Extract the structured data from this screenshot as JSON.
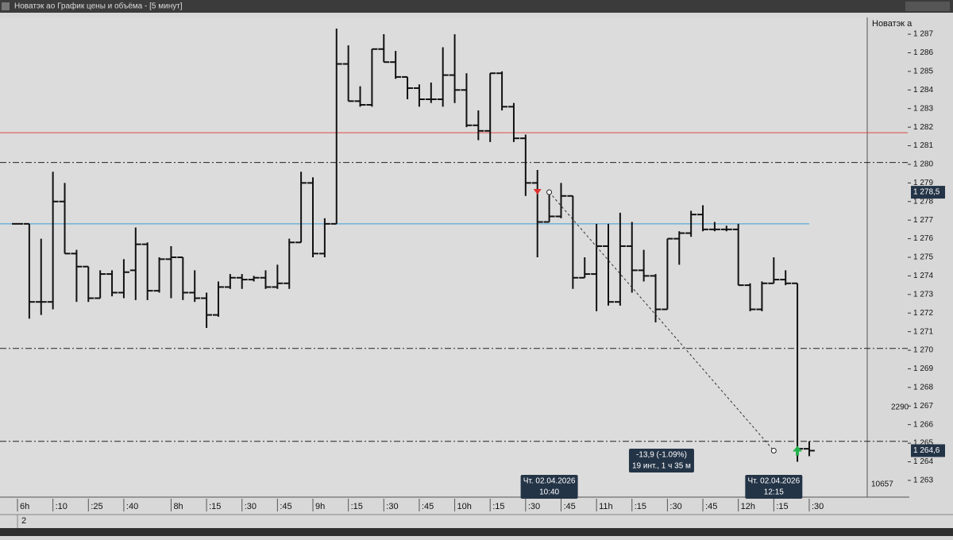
{
  "window_title": "Новатэк ао График цены и объёма - [5 минут]",
  "chart_data": {
    "type": "ohlc",
    "axis_title": "Новатэк а",
    "color": "#111111",
    "categories": [
      "6h",
      null,
      null,
      ":10",
      null,
      null,
      ":25",
      null,
      null,
      ":40",
      null,
      null,
      null,
      "8h",
      null,
      null,
      ":15",
      null,
      null,
      ":30",
      null,
      null,
      ":45",
      null,
      null,
      "9h",
      null,
      null,
      ":15",
      null,
      null,
      ":30",
      null,
      null,
      ":45",
      null,
      null,
      "10h",
      null,
      null,
      ":15",
      null,
      null,
      ":30",
      null,
      null,
      ":45",
      null,
      null,
      "11h",
      null,
      null,
      ":15",
      null,
      null,
      ":30",
      null,
      null,
      ":45",
      null,
      null,
      "12h",
      null,
      null,
      ":15",
      null,
      null,
      ":30"
    ],
    "open": [
      1276.8,
      1276.8,
      1272.6,
      1272.6,
      1278.0,
      1275.2,
      1274.5,
      1272.8,
      1274.1,
      1273.1,
      1274.3,
      1275.7,
      1273.2,
      1274.9,
      1275.0,
      1273.1,
      1272.8,
      1271.9,
      1273.4,
      1273.9,
      1273.8,
      1273.9,
      1273.4,
      1273.6,
      1275.8,
      1279.0,
      1275.2,
      1276.8,
      1285.4,
      1283.4,
      1283.2,
      1286.2,
      1285.5,
      1284.7,
      1284.1,
      1283.5,
      1283.5,
      1284.8,
      1284.0,
      1282.1,
      1281.8,
      1284.9,
      1283.1,
      1281.4,
      1279.0,
      1276.9,
      1277.2,
      1278.3,
      1273.9,
      1274.1,
      1275.6,
      1272.6,
      1275.6,
      1274.3,
      1274.0,
      1272.2,
      1276.0,
      1276.3,
      1277.3,
      1276.5,
      1276.5,
      1276.5,
      1273.5,
      1272.2,
      1273.6,
      1273.8,
      1273.6,
      1264.7
    ],
    "high": [
      1276.8,
      1276.8,
      1276.0,
      1279.6,
      1279.0,
      1275.4,
      1274.5,
      1274.3,
      1274.3,
      1274.9,
      1276.6,
      1275.8,
      1275.0,
      1275.6,
      1275.0,
      1274.3,
      1273.1,
      1273.7,
      1274.1,
      1274.1,
      1274.0,
      1274.3,
      1274.6,
      1276.0,
      1279.6,
      1279.3,
      1277.1,
      1287.3,
      1286.4,
      1284.2,
      1286.2,
      1287.0,
      1286.1,
      1284.7,
      1284.3,
      1284.4,
      1286.3,
      1287.0,
      1284.9,
      1282.9,
      1284.9,
      1285.0,
      1283.3,
      1281.6,
      1279.7,
      1278.4,
      1279.0,
      1278.3,
      1275.0,
      1276.8,
      1276.8,
      1277.4,
      1276.9,
      1275.4,
      1274.1,
      1276.0,
      1276.4,
      1277.5,
      1277.8,
      1276.9,
      1276.7,
      1276.8,
      1273.6,
      1273.7,
      1275.0,
      1274.3,
      1273.6,
      1265.1
    ],
    "low": [
      1276.8,
      1271.7,
      1271.9,
      1272.2,
      1275.2,
      1272.6,
      1272.6,
      1272.8,
      1272.9,
      1272.8,
      1272.7,
      1272.7,
      1273.1,
      1272.8,
      1272.7,
      1272.6,
      1271.2,
      1271.8,
      1273.3,
      1273.3,
      1273.7,
      1273.3,
      1273.3,
      1273.3,
      1275.8,
      1275.0,
      1275.0,
      1276.8,
      1283.4,
      1283.1,
      1283.1,
      1285.5,
      1284.6,
      1283.5,
      1283.1,
      1283.3,
      1283.1,
      1283.3,
      1282.0,
      1281.3,
      1281.2,
      1282.9,
      1281.2,
      1278.3,
      1275.0,
      1276.9,
      1277.1,
      1273.3,
      1273.9,
      1272.1,
      1272.4,
      1272.4,
      1273.1,
      1273.7,
      1271.5,
      1272.2,
      1274.6,
      1276.1,
      1276.4,
      1276.4,
      1276.4,
      1273.5,
      1272.1,
      1272.1,
      1273.6,
      1273.5,
      1264.0,
      1264.3
    ],
    "close": [
      1276.8,
      1272.6,
      1272.6,
      1278.0,
      1275.2,
      1274.5,
      1272.8,
      1274.1,
      1273.1,
      1274.2,
      1275.7,
      1273.2,
      1274.9,
      1275.0,
      1273.1,
      1272.8,
      1271.9,
      1273.4,
      1273.9,
      1273.8,
      1273.9,
      1273.4,
      1273.6,
      1275.8,
      1279.0,
      1275.2,
      1276.8,
      1285.4,
      1283.4,
      1283.2,
      1286.2,
      1285.5,
      1284.7,
      1284.1,
      1283.5,
      1283.5,
      1284.8,
      1284.0,
      1282.1,
      1281.8,
      1284.9,
      1283.1,
      1281.4,
      1279.0,
      1276.9,
      1277.2,
      1278.3,
      1273.9,
      1274.1,
      1275.6,
      1272.6,
      1275.6,
      1274.3,
      1274.0,
      1272.2,
      1276.0,
      1276.3,
      1277.3,
      1276.5,
      1276.5,
      1276.5,
      1273.5,
      1272.2,
      1273.6,
      1273.8,
      1273.6,
      1264.7,
      1264.6
    ],
    "ylim": [
      1262.1,
      1287.9
    ],
    "yticks": [
      {
        "value": 1263,
        "label": "1 263"
      },
      {
        "value": 1264,
        "label": "1 264"
      },
      {
        "value": 1265,
        "label": "1 265"
      },
      {
        "value": 1266,
        "label": "1 266"
      },
      {
        "value": 1267,
        "label": "1 267"
      },
      {
        "value": 1268,
        "label": "1 268"
      },
      {
        "value": 1269,
        "label": "1 269"
      },
      {
        "value": 1270,
        "label": "1 270"
      },
      {
        "value": 1271,
        "label": "1 271"
      },
      {
        "value": 1272,
        "label": "1 272"
      },
      {
        "value": 1273,
        "label": "1 273"
      },
      {
        "value": 1274,
        "label": "1 274"
      },
      {
        "value": 1275,
        "label": "1 275"
      },
      {
        "value": 1276,
        "label": "1 276"
      },
      {
        "value": 1277,
        "label": "1 277"
      },
      {
        "value": 1278,
        "label": "1 278"
      },
      {
        "value": 1279,
        "label": "1 279"
      },
      {
        "value": 1280,
        "label": "1 280"
      },
      {
        "value": 1281,
        "label": "1 281"
      },
      {
        "value": 1282,
        "label": "1 282"
      },
      {
        "value": 1283,
        "label": "1 283"
      },
      {
        "value": 1284,
        "label": "1 284"
      },
      {
        "value": 1285,
        "label": "1 285"
      },
      {
        "value": 1286,
        "label": "1 286"
      },
      {
        "value": 1287,
        "label": "1 287"
      }
    ],
    "levels": [
      {
        "value": 1281.7,
        "color": "#e04848",
        "style": "solid"
      },
      {
        "value": 1276.8,
        "color": "#3a9fd6",
        "style": "solid"
      },
      {
        "value": 1280.1,
        "color": "#222222",
        "style": "dashdot"
      },
      {
        "value": 1270.1,
        "color": "#222222",
        "style": "dashdot"
      },
      {
        "value": 1265.1,
        "color": "#222222",
        "style": "dashdot"
      }
    ],
    "price_labels": [
      {
        "value": 1278.5,
        "label": "1 278,5"
      },
      {
        "value": 1264.6,
        "label": "1 264,6"
      }
    ],
    "volume_labels": [
      "2290",
      "10657"
    ],
    "measure": {
      "values": [
        1278.5,
        1264.6
      ],
      "start": [
        "Чт. 02.04.2026",
        "10:40"
      ],
      "end": [
        "Чт. 02.04.2026",
        "12:15"
      ],
      "summary": [
        "-13,9 (-1.09%)",
        "19 инт., 1 ч 35 м"
      ]
    },
    "pane_label": "2"
  }
}
